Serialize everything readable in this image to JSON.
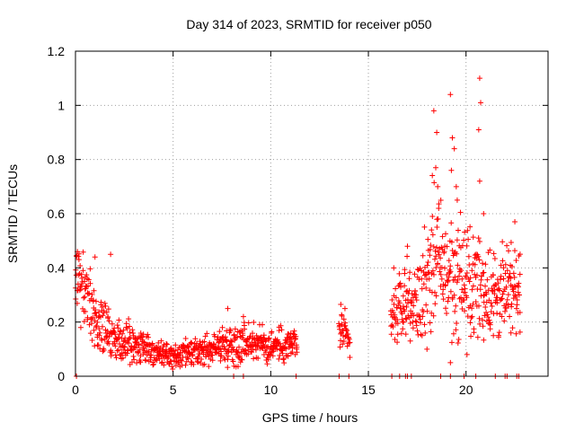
{
  "chart_data": {
    "type": "scatter",
    "title": "Day 314 of 2023, SRMTID for receiver p050",
    "xlabel": "GPS time / hours",
    "ylabel": "SRMTID / TECUs",
    "xlim": [
      0,
      24.2
    ],
    "ylim": [
      0,
      1.2
    ],
    "grid": true,
    "marker": "plus",
    "x_ticks": [
      0,
      5,
      10,
      15,
      20
    ],
    "x_tick_labels": [
      "0",
      "5",
      "10",
      "15",
      "20"
    ],
    "y_ticks": [
      0,
      0.2,
      0.4,
      0.6,
      0.8,
      1.0,
      1.2
    ],
    "y_tick_labels": [
      "0",
      "0.2",
      "0.4",
      "0.6",
      "0.8",
      "1",
      "1.2"
    ],
    "series": [
      {
        "name": "SRMTID",
        "color": "#ff0000",
        "envelope": [
          {
            "x": 0.0,
            "y": 0.4,
            "spread": 0.12
          },
          {
            "x": 0.5,
            "y": 0.3,
            "spread": 0.1
          },
          {
            "x": 1.0,
            "y": 0.22,
            "spread": 0.1
          },
          {
            "x": 1.5,
            "y": 0.17,
            "spread": 0.08
          },
          {
            "x": 2.0,
            "y": 0.14,
            "spread": 0.06
          },
          {
            "x": 3.0,
            "y": 0.12,
            "spread": 0.06
          },
          {
            "x": 4.0,
            "y": 0.09,
            "spread": 0.04
          },
          {
            "x": 5.0,
            "y": 0.07,
            "spread": 0.035
          },
          {
            "x": 6.0,
            "y": 0.08,
            "spread": 0.04
          },
          {
            "x": 7.0,
            "y": 0.1,
            "spread": 0.045
          },
          {
            "x": 8.0,
            "y": 0.12,
            "spread": 0.06
          },
          {
            "x": 9.0,
            "y": 0.13,
            "spread": 0.06
          },
          {
            "x": 10.0,
            "y": 0.11,
            "spread": 0.05
          },
          {
            "x": 11.3,
            "y": 0.12,
            "spread": 0.05
          },
          {
            "x": 13.6,
            "y": 0.17,
            "spread": 0.06
          },
          {
            "x": 14.0,
            "y": 0.13,
            "spread": 0.04
          },
          {
            "x": 16.2,
            "y": 0.2,
            "spread": 0.1
          },
          {
            "x": 17.0,
            "y": 0.3,
            "spread": 0.1
          },
          {
            "x": 17.5,
            "y": 0.25,
            "spread": 0.12
          },
          {
            "x": 18.3,
            "y": 0.45,
            "spread": 0.2
          },
          {
            "x": 19.0,
            "y": 0.38,
            "spread": 0.18
          },
          {
            "x": 20.0,
            "y": 0.35,
            "spread": 0.17
          },
          {
            "x": 21.0,
            "y": 0.32,
            "spread": 0.15
          },
          {
            "x": 22.0,
            "y": 0.3,
            "spread": 0.13
          },
          {
            "x": 22.7,
            "y": 0.33,
            "spread": 0.12
          }
        ],
        "segments": [
          [
            0.0,
            11.35
          ],
          [
            13.5,
            14.05
          ],
          [
            16.15,
            22.8
          ]
        ],
        "peaks": [
          {
            "x": 18.35,
            "y": 0.98
          },
          {
            "x": 18.5,
            "y": 0.9
          },
          {
            "x": 18.45,
            "y": 0.77
          },
          {
            "x": 18.55,
            "y": 0.7
          },
          {
            "x": 18.6,
            "y": 0.62
          },
          {
            "x": 19.2,
            "y": 1.04
          },
          {
            "x": 19.3,
            "y": 0.88
          },
          {
            "x": 19.4,
            "y": 0.84
          },
          {
            "x": 19.25,
            "y": 0.76
          },
          {
            "x": 19.5,
            "y": 0.7
          },
          {
            "x": 19.55,
            "y": 0.65
          },
          {
            "x": 20.7,
            "y": 1.1
          },
          {
            "x": 20.75,
            "y": 1.01
          },
          {
            "x": 20.65,
            "y": 0.91
          },
          {
            "x": 20.7,
            "y": 0.72
          },
          {
            "x": 20.9,
            "y": 0.6
          },
          {
            "x": 22.5,
            "y": 0.57
          },
          {
            "x": 17.0,
            "y": 0.48
          },
          {
            "x": 16.3,
            "y": 0.4
          },
          {
            "x": 0.1,
            "y": 0.46
          },
          {
            "x": 1.0,
            "y": 0.44
          },
          {
            "x": 1.8,
            "y": 0.45
          },
          {
            "x": 7.8,
            "y": 0.25
          },
          {
            "x": 8.6,
            "y": 0.22
          },
          {
            "x": 13.8,
            "y": 0.25
          },
          {
            "x": 20.05,
            "y": 0.08
          },
          {
            "x": 19.2,
            "y": 0.05
          },
          {
            "x": 22.3,
            "y": 0.16
          },
          {
            "x": 21.4,
            "y": 0.15
          },
          {
            "x": 18.0,
            "y": 0.1
          }
        ],
        "zeros": [
          0.05,
          8.1,
          8.6,
          11.3,
          13.5,
          14.0,
          16.2,
          16.6,
          16.9,
          17.0,
          17.2,
          18.7,
          19.2,
          19.9,
          20.5,
          21.5,
          22.0,
          22.1,
          22.6,
          22.7
        ]
      }
    ]
  }
}
